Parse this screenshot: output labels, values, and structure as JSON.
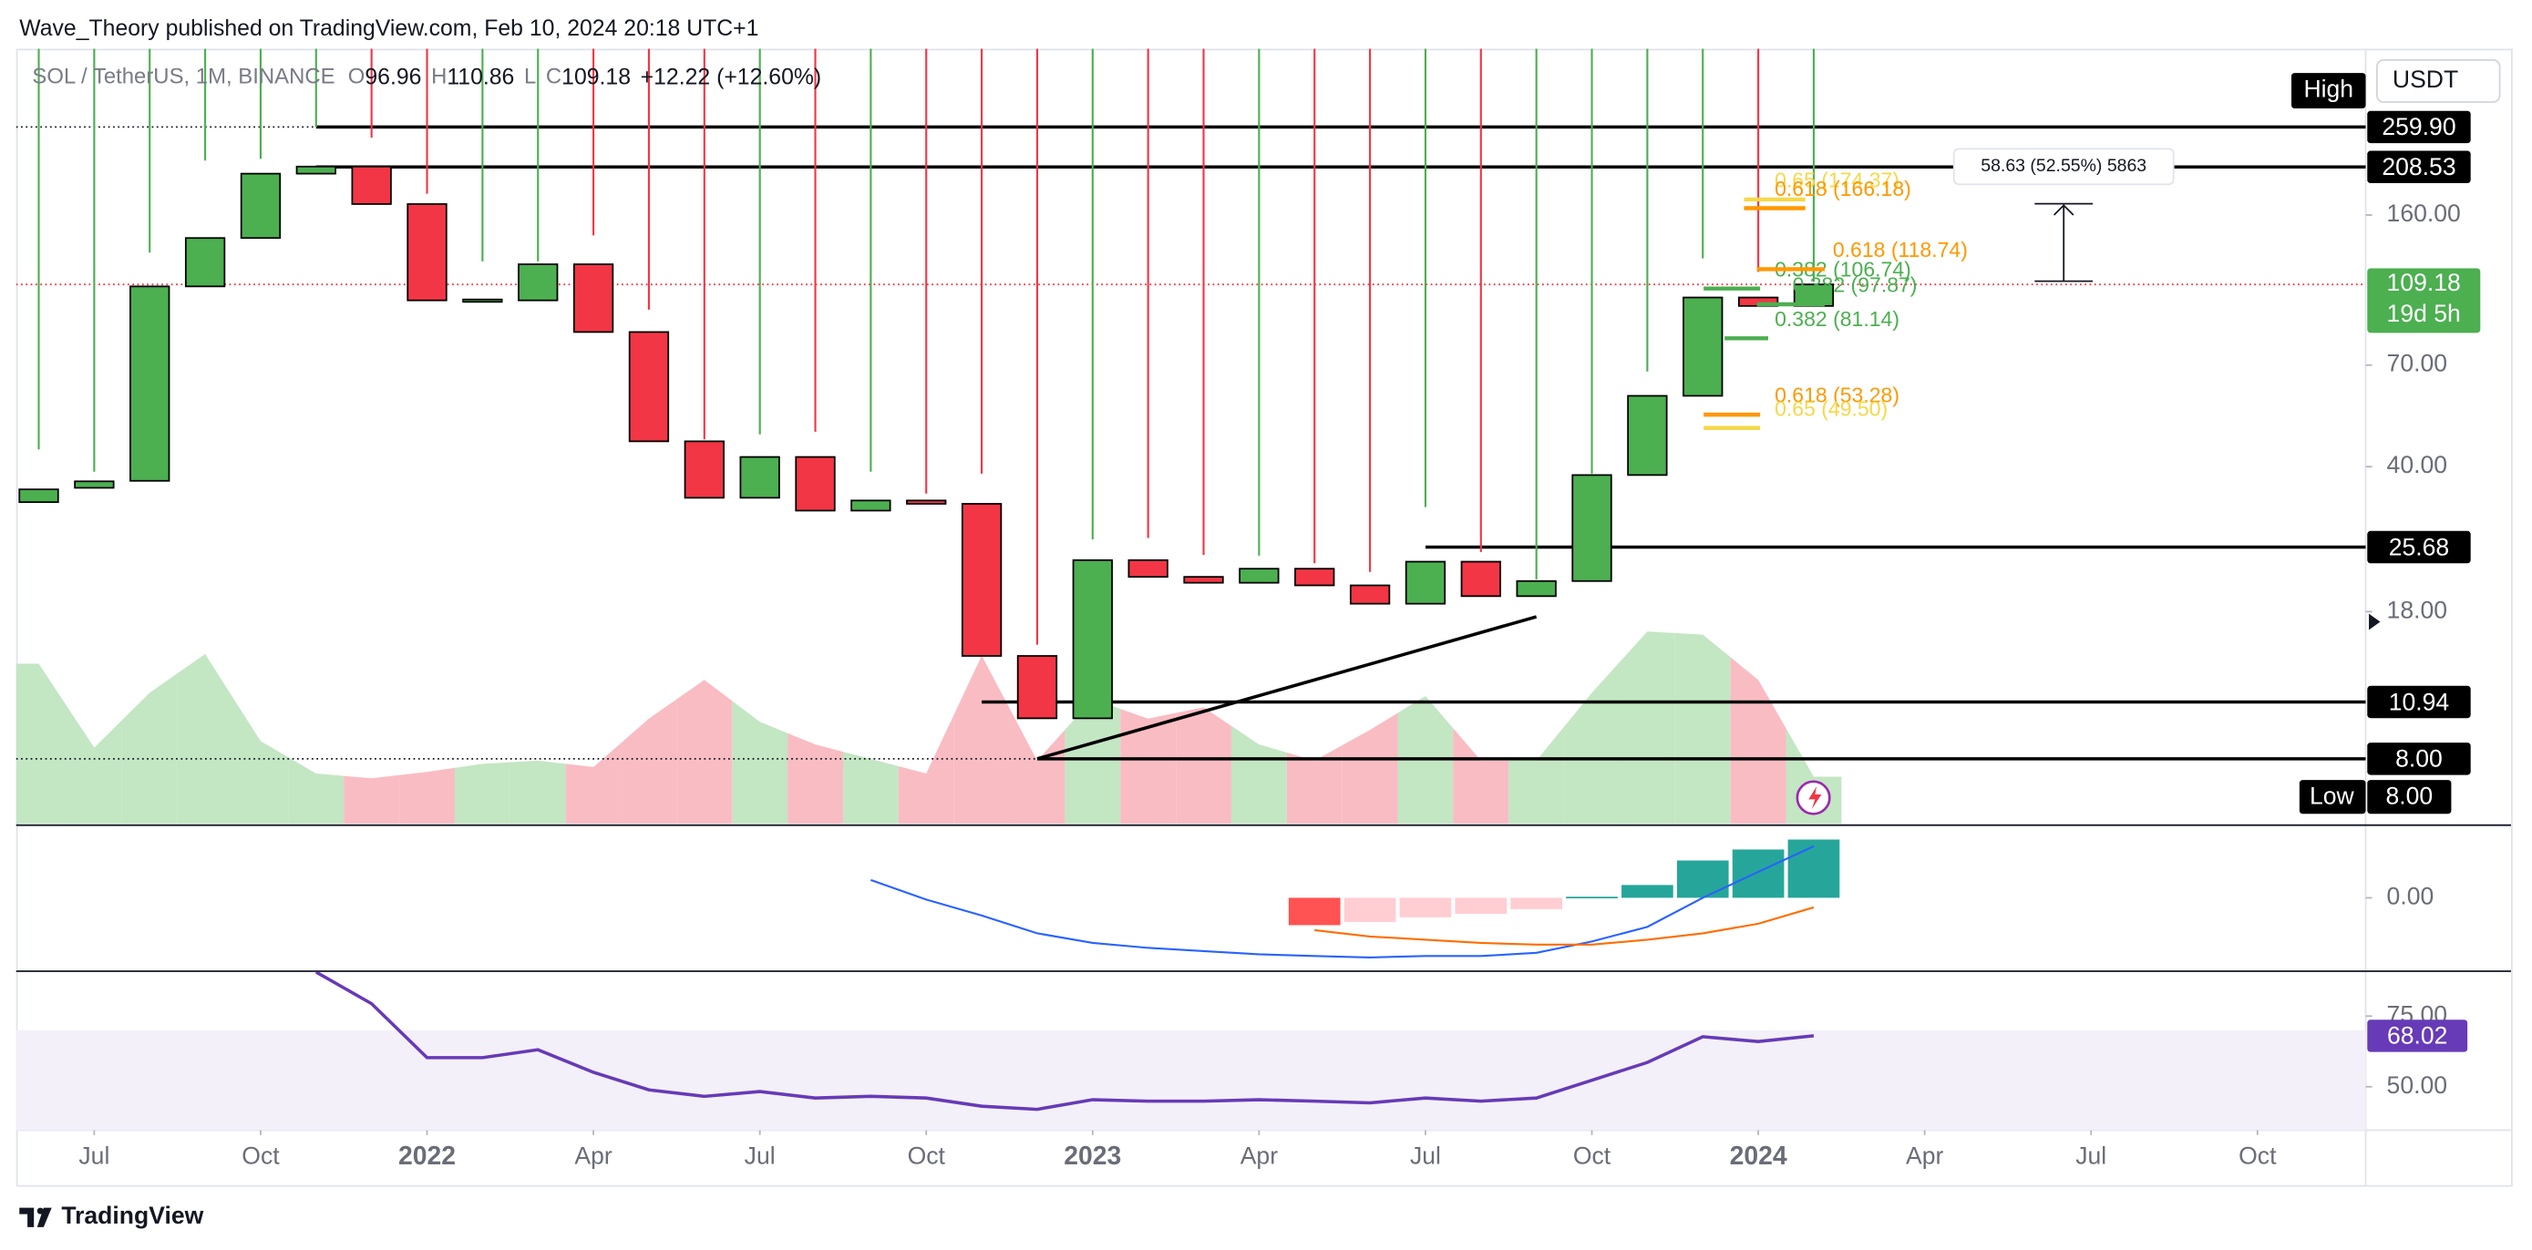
{
  "header": {
    "title": "Wave_Theory published on TradingView.com, Feb 10, 2024 20:18 UTC+1",
    "symbol": "SOL / TetherUS, 1M, BINANCE",
    "o": "O",
    "h": "H",
    "l": "L",
    "c": "C",
    "change": "+12.22 (+12.60%)",
    "currency": "USDT",
    "high_label": "High",
    "low_label": "Low",
    "countdown": "19d 5h",
    "measure": "58.63 (52.55%) 5863",
    "footer": "TradingView"
  },
  "chart_data": [
    {
      "type": "candlestick",
      "log_scale": true,
      "ylim": [
        5.6,
        400
      ],
      "yticks": [
        {
          "value": 160,
          "label": "160.00"
        },
        {
          "value": 70,
          "label": "70.00"
        },
        {
          "value": 40,
          "label": "40.00"
        },
        {
          "value": 18,
          "label": "18.00"
        }
      ],
      "x": [
        "2021-06",
        "2021-07",
        "2021-08",
        "2021-09",
        "2021-10",
        "2021-11",
        "2021-12",
        "2022-01",
        "2022-02",
        "2022-03",
        "2022-04",
        "2022-05",
        "2022-06",
        "2022-07",
        "2022-08",
        "2022-09",
        "2022-10",
        "2022-11",
        "2022-12",
        "2023-01",
        "2023-02",
        "2023-03",
        "2023-04",
        "2023-05",
        "2023-06",
        "2023-07",
        "2023-08",
        "2023-09",
        "2023-10",
        "2023-11",
        "2023-12",
        "2024-01",
        "2024-02"
      ],
      "xticks": [
        {
          "value": "2021-07",
          "label": "Jul"
        },
        {
          "value": "2021-10",
          "label": "Oct"
        },
        {
          "value": "2022-01",
          "label": "2022"
        },
        {
          "value": "2022-04",
          "label": "Apr"
        },
        {
          "value": "2022-07",
          "label": "Jul"
        },
        {
          "value": "2022-10",
          "label": "Oct"
        },
        {
          "value": "2023-01",
          "label": "2023"
        },
        {
          "value": "2023-04",
          "label": "Apr"
        },
        {
          "value": "2023-07",
          "label": "Jul"
        },
        {
          "value": "2023-10",
          "label": "Oct"
        },
        {
          "value": "2024-01",
          "label": "2024"
        },
        {
          "value": "2024-04",
          "label": "Apr"
        },
        {
          "value": "2024-07",
          "label": "Jul"
        },
        {
          "value": "2024-10",
          "label": "Oct"
        }
      ],
      "open": [
        32.9,
        35.6,
        37,
        108,
        141,
        201,
        209,
        170,
        100,
        100,
        122,
        84,
        46,
        33.7,
        42.2,
        31.4,
        33.2,
        32.6,
        14.1,
        10,
        23.9,
        21.8,
        21.1,
        22.8,
        20.8,
        18.8,
        23.7,
        19.6,
        21.3,
        38.2,
        59.1,
        101.6,
        96.96
      ],
      "high": [
        44,
        38.9,
        130,
        216,
        218,
        259.9,
        245,
        180,
        124,
        124,
        143,
        95,
        46.5,
        47.8,
        48.5,
        38.9,
        34.5,
        38.5,
        15,
        26.8,
        27,
        24.6,
        24.5,
        23.5,
        22.4,
        32,
        25,
        21.5,
        38.5,
        67.6,
        126,
        117,
        110.86
      ],
      "low": {
        "value": 8,
        "label": "8.00"
      },
      "close": [
        35.3,
        36.9,
        108,
        141,
        201,
        209,
        170,
        100,
        100.5,
        122,
        84,
        46,
        33.7,
        42.2,
        31.4,
        33.2,
        32.6,
        14.1,
        10,
        23.9,
        21.8,
        21.1,
        22.8,
        20.8,
        18.8,
        23.7,
        19.6,
        21.3,
        38.2,
        59.1,
        101.6,
        96.96,
        109.18
      ],
      "up_color": "#4caf50",
      "down_color": "#f23645",
      "volume": [
        99,
        47,
        81,
        105,
        51,
        31,
        28,
        32,
        37,
        39,
        35,
        65,
        89,
        63,
        49,
        40,
        31,
        104,
        39,
        77,
        65,
        72,
        49,
        39,
        58,
        79,
        39,
        39,
        81,
        119,
        117,
        89,
        29
      ],
      "volume_ylim": [
        0,
        480
      ],
      "volume_up_color": "#c3e6c3",
      "volume_down_color": "#f9bcc3",
      "levels": [
        {
          "value": 259.9,
          "label": "259.90",
          "x": "2021-11",
          "dotted_before": true
        },
        {
          "value": 208.53,
          "label": "208.53",
          "x": "2021-11"
        },
        {
          "value": 25.68,
          "label": "25.68",
          "x": "2023-07"
        },
        {
          "value": 10.94,
          "label": "10.94",
          "x": "2022-11"
        },
        {
          "value": 8,
          "label": "8.00",
          "x": "2022-12",
          "dotted_before": true
        }
      ],
      "trendline": {
        "x": [
          "2022-12",
          "2023-09"
        ],
        "y": [
          8,
          17.5
        ]
      },
      "fib": [
        {
          "label": "0.65 (174.37)",
          "value": 174.37,
          "color": "#f5d84a"
        },
        {
          "label": "0.618 (166.18)",
          "value": 166.18,
          "color": "#ff9800"
        },
        {
          "label": "0.382 (81.14)",
          "value": 81.14,
          "color": "#4caf50"
        },
        {
          "label": "0.618 (53.28)",
          "value": 53.28,
          "color": "#ff9800"
        },
        {
          "label": "0.65 (49.50)",
          "value": 49.5,
          "color": "#f5d84a"
        },
        {
          "label": "0.382 (106.74)",
          "value": 106.74,
          "color": "#4caf50"
        },
        {
          "label": "0.618 (118.74)",
          "value": 118.74,
          "color": "#ff9800"
        },
        {
          "label": "0.382 (97.87)",
          "value": 97.87,
          "color": "#4caf50"
        }
      ]
    },
    {
      "type": "macd",
      "ylim": [
        -20,
        20
      ],
      "yticks": [
        {
          "value": 0,
          "label": "0.00"
        }
      ],
      "series": [
        {
          "name": "MACD",
          "color": "#2962ff",
          "values": [
            null,
            null,
            null,
            null,
            null,
            null,
            null,
            null,
            null,
            null,
            null,
            null,
            null,
            null,
            null,
            5,
            -0.5,
            -5,
            -10,
            -12.7,
            -14.1,
            -15,
            -15.9,
            -16.4,
            -16.8,
            -16.4,
            -16.4,
            -15.5,
            -12.3,
            -8.2,
            0,
            7.3,
            14.5
          ]
        },
        {
          "name": "Signal",
          "color": "#ff6d00",
          "values": [
            null,
            null,
            null,
            null,
            null,
            null,
            null,
            null,
            null,
            null,
            null,
            null,
            null,
            null,
            null,
            null,
            null,
            null,
            null,
            null,
            null,
            null,
            null,
            -9.1,
            -10.9,
            -11.8,
            -12.7,
            -13.2,
            -13.2,
            -11.8,
            -10,
            -7.3,
            -2.7
          ]
        }
      ],
      "histogram": [
        null,
        null,
        null,
        null,
        null,
        null,
        null,
        null,
        null,
        null,
        null,
        null,
        null,
        null,
        null,
        null,
        null,
        null,
        null,
        null,
        null,
        null,
        null,
        -7.7,
        -6.8,
        -5.5,
        -4.5,
        -3.2,
        0.3,
        3.6,
        10.5,
        13.6,
        16.4
      ]
    },
    {
      "type": "rsi",
      "ylim": [
        34.6,
        90.6
      ],
      "yticks": [
        {
          "value": 75,
          "label": "75.00"
        },
        {
          "value": 50,
          "label": "50.00"
        }
      ],
      "band": [
        30,
        70
      ],
      "color": "#673ab7",
      "values": [
        null,
        null,
        null,
        null,
        null,
        90.6,
        79.4,
        60.3,
        60.3,
        63.1,
        55.1,
        48.9,
        46.6,
        48.3,
        46,
        46.6,
        46,
        43.1,
        42,
        45.4,
        44.9,
        44.9,
        45.4,
        44.9,
        44.3,
        46,
        44.9,
        46,
        52.3,
        58.6,
        67.7,
        66,
        68.02
      ]
    }
  ]
}
